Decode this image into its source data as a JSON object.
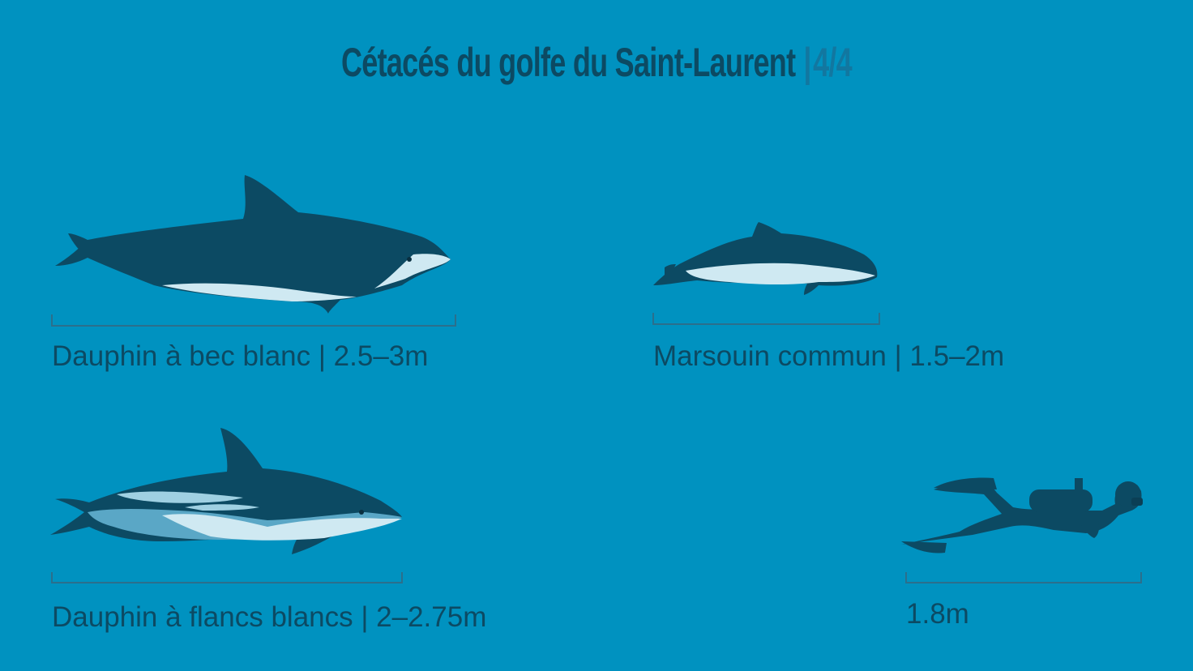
{
  "title": {
    "main": "Cétacés du golfe du Saint-Laurent",
    "separator": "|",
    "page": "4/4"
  },
  "colors": {
    "background": "#0092c0",
    "dark_body": "#0c4a63",
    "light_belly": "#cfe9f2",
    "mid_blue": "#5aa7c6",
    "scale_line": "#2b6f8c"
  },
  "species": [
    {
      "label": "Dauphin à bec blanc | 2.5–3m",
      "illustration": "white-beaked-dolphin"
    },
    {
      "label": "Marsouin commun | 1.5–2m",
      "illustration": "harbour-porpoise"
    },
    {
      "label": "Dauphin à flancs blancs | 2–2.75m",
      "illustration": "white-sided-dolphin"
    },
    {
      "label": "1.8m",
      "illustration": "scuba-diver"
    }
  ]
}
